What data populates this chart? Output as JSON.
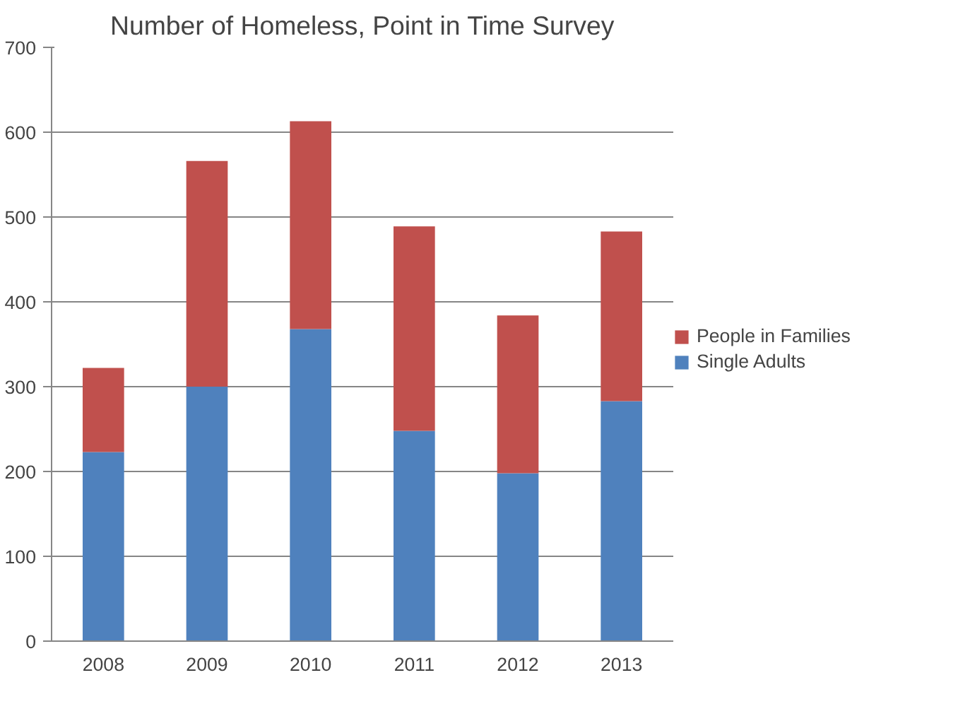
{
  "chart_data": {
    "type": "bar",
    "title": "Number of Homeless, Point in Time Survey",
    "categories": [
      "2008",
      "2009",
      "2010",
      "2011",
      "2012",
      "2013"
    ],
    "stacked": true,
    "series": [
      {
        "name": "Single Adults",
        "color": "#4f81bd",
        "values": [
          223,
          300,
          368,
          248,
          198,
          283
        ]
      },
      {
        "name": "People in Families",
        "color": "#c0504d",
        "values": [
          99,
          266,
          245,
          241,
          186,
          200
        ]
      }
    ],
    "ylim": [
      0,
      700
    ],
    "yticks": [
      0,
      100,
      200,
      300,
      400,
      500,
      600,
      700
    ],
    "grid": "y",
    "legend": "right"
  }
}
